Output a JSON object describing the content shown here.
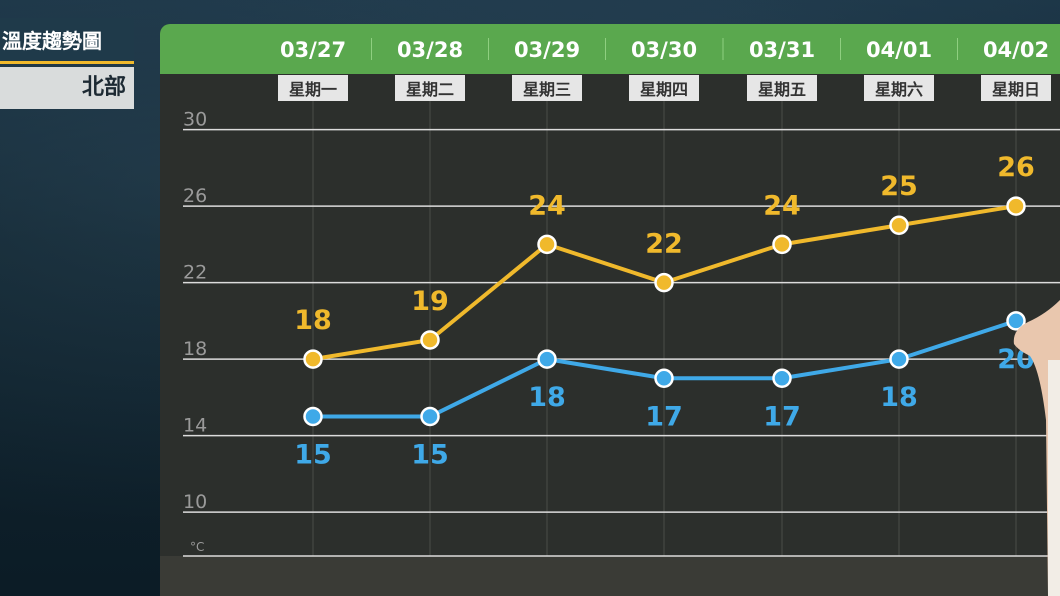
{
  "title": {
    "main": "溫度趨勢圖",
    "region": "北部"
  },
  "colors": {
    "header_green": "#5aa84e",
    "high_series": "#f0b92c",
    "low_series": "#3fa9e8",
    "grid": "#e8e8e8",
    "axis_text": "#9a9a9a"
  },
  "chart_data": {
    "type": "line",
    "title": "溫度趨勢圖",
    "categories": [
      "03/27",
      "03/28",
      "03/29",
      "03/30",
      "03/31",
      "04/01",
      "04/02"
    ],
    "weekdays": [
      "星期一",
      "星期二",
      "星期三",
      "星期四",
      "星期五",
      "星期六",
      "星期日"
    ],
    "y_ticks": [
      10,
      14,
      18,
      22,
      26,
      30
    ],
    "y_unit": "°C",
    "ylim": [
      7.5,
      30.5
    ],
    "grid": true,
    "series": [
      {
        "key": "high",
        "values": [
          18,
          19,
          24,
          22,
          24,
          25,
          26
        ],
        "labels": [
          "18",
          "19",
          "24",
          "22",
          "24",
          "25",
          "26"
        ]
      },
      {
        "key": "low",
        "values": [
          15,
          15,
          18,
          17,
          17,
          18,
          20
        ],
        "labels": [
          "15",
          "15",
          "18",
          "17",
          "17",
          "18",
          "20"
        ]
      }
    ]
  }
}
